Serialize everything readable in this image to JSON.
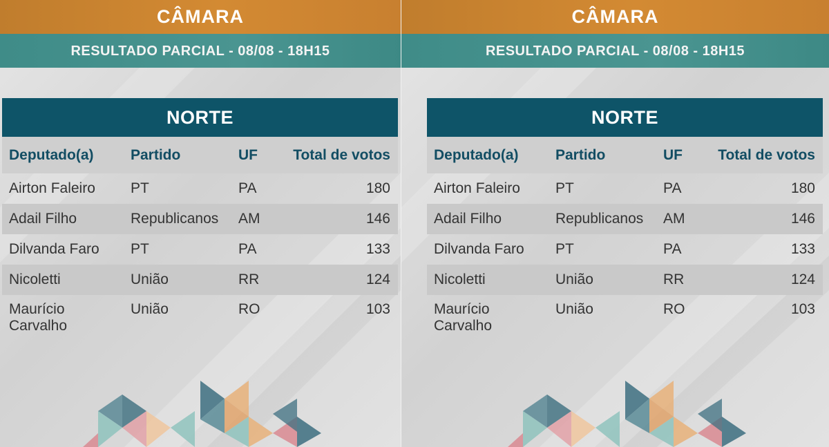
{
  "panels": [
    {
      "header": "CÂMARA",
      "subheader": "RESULTADO PARCIAL - 08/08 - 18H15",
      "region": "NORTE",
      "columns": [
        "Deputado(a)",
        "Partido",
        "UF",
        "Total de votos"
      ],
      "rows": [
        [
          "Airton Faleiro",
          "PT",
          "PA",
          "180"
        ],
        [
          "Adail Filho",
          "Republicanos",
          "AM",
          "146"
        ],
        [
          "Dilvanda Faro",
          "PT",
          "PA",
          "133"
        ],
        [
          "Nicoletti",
          "União",
          "RR",
          "124"
        ],
        [
          "Maurício Carvalho",
          "União",
          "RO",
          "103"
        ]
      ]
    },
    {
      "header": "CÂMARA",
      "subheader": "RESULTADO PARCIAL - 08/08 - 18H15",
      "region": "NORTE",
      "columns": [
        "Deputado(a)",
        "Partido",
        "UF",
        "Total de votos"
      ],
      "rows": [
        [
          "Airton Faleiro",
          "PT",
          "PA",
          "180"
        ],
        [
          "Adail Filho",
          "Republicanos",
          "AM",
          "146"
        ],
        [
          "Dilvanda Faro",
          "PT",
          "PA",
          "133"
        ],
        [
          "Nicoletti",
          "União",
          "RR",
          "124"
        ],
        [
          "Maurício Carvalho",
          "União",
          "RO",
          "103"
        ]
      ]
    }
  ],
  "colors": {
    "header_orange": "#c9822f",
    "subheader_teal": "#46918d",
    "region_navy": "#0e5468",
    "column_header_text": "#124d63"
  }
}
